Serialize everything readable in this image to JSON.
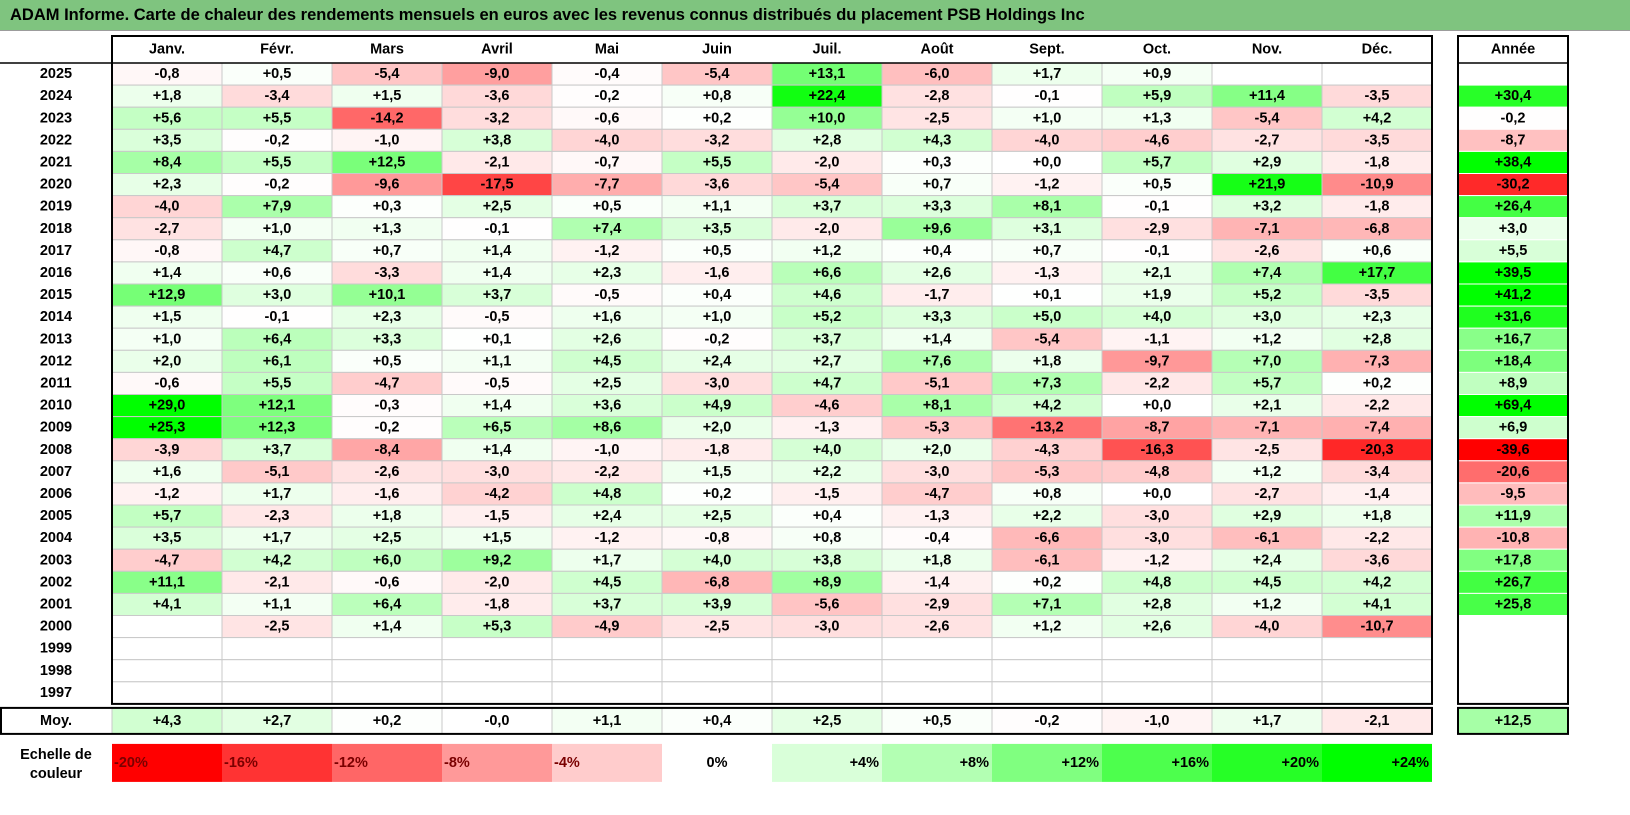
{
  "title": "ADAM Informe. Carte de chaleur des rendements mensuels en euros avec les revenus connus distribués du placement PSB Holdings Inc",
  "chart_data": {
    "type": "heatmap",
    "months": [
      "Janv.",
      "Févr.",
      "Mars",
      "Avril",
      "Mai",
      "Juin",
      "Juil.",
      "Août",
      "Sept.",
      "Oct.",
      "Nov.",
      "Déc."
    ],
    "annual_header": "Année",
    "average_label": "Moy.",
    "scale_label": [
      "Echelle de",
      "couleur"
    ],
    "rows": [
      {
        "year": "2025",
        "values": [
          -0.8,
          0.5,
          -5.4,
          -9.0,
          -0.4,
          -5.4,
          13.1,
          -6.0,
          1.7,
          0.9,
          null,
          null
        ],
        "annual": null
      },
      {
        "year": "2024",
        "values": [
          1.8,
          -3.4,
          1.5,
          -3.6,
          -0.2,
          0.8,
          22.4,
          -2.8,
          -0.1,
          5.9,
          11.4,
          -3.5
        ],
        "annual": 30.4
      },
      {
        "year": "2023",
        "values": [
          5.6,
          5.5,
          -14.2,
          -3.2,
          -0.6,
          0.2,
          10.0,
          -2.5,
          1.0,
          1.3,
          -5.4,
          4.2
        ],
        "annual": -0.2
      },
      {
        "year": "2022",
        "values": [
          3.5,
          -0.2,
          -1.0,
          3.8,
          -4.0,
          -3.2,
          2.8,
          4.3,
          -4.0,
          -4.6,
          -2.7,
          -3.5
        ],
        "annual": -8.7
      },
      {
        "year": "2021",
        "values": [
          8.4,
          5.5,
          12.5,
          -2.1,
          -0.7,
          5.5,
          -2.0,
          0.3,
          0.0,
          5.7,
          2.9,
          -1.8
        ],
        "annual": 38.4
      },
      {
        "year": "2020",
        "values": [
          2.3,
          -0.2,
          -9.6,
          -17.5,
          -7.7,
          -3.6,
          -5.4,
          0.7,
          -1.2,
          0.5,
          21.9,
          -10.9
        ],
        "annual": -30.2
      },
      {
        "year": "2019",
        "values": [
          -4.0,
          7.9,
          0.3,
          2.5,
          0.5,
          1.1,
          3.7,
          3.3,
          8.1,
          -0.1,
          3.2,
          -1.8
        ],
        "annual": 26.4
      },
      {
        "year": "2018",
        "values": [
          -2.7,
          1.0,
          1.3,
          -0.1,
          7.4,
          3.5,
          -2.0,
          9.6,
          3.1,
          -2.9,
          -7.1,
          -6.8
        ],
        "annual": 3.0
      },
      {
        "year": "2017",
        "values": [
          -0.8,
          4.7,
          0.7,
          1.4,
          -1.2,
          0.5,
          1.2,
          0.4,
          0.7,
          -0.1,
          -2.6,
          0.6
        ],
        "annual": 5.5
      },
      {
        "year": "2016",
        "values": [
          1.4,
          0.6,
          -3.3,
          1.4,
          2.3,
          -1.6,
          6.6,
          2.6,
          -1.3,
          2.1,
          7.4,
          17.7
        ],
        "annual": 39.5
      },
      {
        "year": "2015",
        "values": [
          12.9,
          3.0,
          10.1,
          3.7,
          -0.5,
          0.4,
          4.6,
          -1.7,
          0.1,
          1.9,
          5.2,
          -3.5
        ],
        "annual": 41.2
      },
      {
        "year": "2014",
        "values": [
          1.5,
          -0.1,
          2.3,
          -0.5,
          1.6,
          1.0,
          5.2,
          3.3,
          5.0,
          4.0,
          3.0,
          2.3
        ],
        "annual": 31.6
      },
      {
        "year": "2013",
        "values": [
          1.0,
          6.4,
          3.3,
          0.1,
          2.6,
          -0.2,
          3.7,
          1.4,
          -5.4,
          -1.1,
          1.2,
          2.8
        ],
        "annual": 16.7
      },
      {
        "year": "2012",
        "values": [
          2.0,
          6.1,
          0.5,
          1.1,
          4.5,
          2.4,
          2.7,
          7.6,
          1.8,
          -9.7,
          7.0,
          -7.3
        ],
        "annual": 18.4
      },
      {
        "year": "2011",
        "values": [
          -0.6,
          5.5,
          -4.7,
          -0.5,
          2.5,
          -3.0,
          4.7,
          -5.1,
          7.3,
          -2.2,
          5.7,
          0.2
        ],
        "annual": 8.9
      },
      {
        "year": "2010",
        "values": [
          29.0,
          12.1,
          -0.3,
          1.4,
          3.6,
          4.9,
          -4.6,
          8.1,
          4.2,
          0.0,
          2.1,
          -2.2
        ],
        "annual": 69.4
      },
      {
        "year": "2009",
        "values": [
          25.3,
          12.3,
          -0.2,
          6.5,
          8.6,
          2.0,
          -1.3,
          -5.3,
          -13.2,
          -8.7,
          -7.1,
          -7.4
        ],
        "annual": 6.9
      },
      {
        "year": "2008",
        "values": [
          -3.9,
          3.7,
          -8.4,
          1.4,
          -1.0,
          -1.8,
          4.0,
          2.0,
          -4.3,
          -16.3,
          -2.5,
          -20.3
        ],
        "annual": -39.6
      },
      {
        "year": "2007",
        "values": [
          1.6,
          -5.1,
          -2.6,
          -3.0,
          -2.2,
          1.5,
          2.2,
          -3.0,
          -5.3,
          -4.8,
          1.2,
          -3.4
        ],
        "annual": -20.6
      },
      {
        "year": "2006",
        "values": [
          -1.2,
          1.7,
          -1.6,
          -4.2,
          4.8,
          0.2,
          -1.5,
          -4.7,
          0.8,
          0.0,
          -2.7,
          -1.4
        ],
        "annual": -9.5
      },
      {
        "year": "2005",
        "values": [
          5.7,
          -2.3,
          1.8,
          -1.5,
          2.4,
          2.5,
          0.4,
          -1.3,
          2.2,
          -3.0,
          2.9,
          1.8
        ],
        "annual": 11.9
      },
      {
        "year": "2004",
        "values": [
          3.5,
          1.7,
          2.5,
          1.5,
          -1.2,
          -0.8,
          0.8,
          -0.4,
          -6.6,
          -3.0,
          -6.1,
          -2.2
        ],
        "annual": -10.8
      },
      {
        "year": "2003",
        "values": [
          -4.7,
          4.2,
          6.0,
          9.2,
          1.7,
          4.0,
          3.8,
          1.8,
          -6.1,
          -1.2,
          2.4,
          -3.6
        ],
        "annual": 17.8
      },
      {
        "year": "2002",
        "values": [
          11.1,
          -2.1,
          -0.6,
          -2.0,
          4.5,
          -6.8,
          8.9,
          -1.4,
          0.2,
          4.8,
          4.5,
          4.2
        ],
        "annual": 26.7
      },
      {
        "year": "2001",
        "values": [
          4.1,
          1.1,
          6.4,
          -1.8,
          3.7,
          3.9,
          -5.6,
          -2.9,
          7.1,
          2.8,
          1.2,
          4.1
        ],
        "annual": 25.8
      },
      {
        "year": "2000",
        "values": [
          null,
          -2.5,
          1.4,
          5.3,
          -4.9,
          -2.5,
          -3.0,
          -2.6,
          1.2,
          2.6,
          -4.0,
          -10.7
        ],
        "annual": null
      },
      {
        "year": "1999",
        "values": [
          null,
          null,
          null,
          null,
          null,
          null,
          null,
          null,
          null,
          null,
          null,
          null
        ],
        "annual": null
      },
      {
        "year": "1998",
        "values": [
          null,
          null,
          null,
          null,
          null,
          null,
          null,
          null,
          null,
          null,
          null,
          null
        ],
        "annual": null
      },
      {
        "year": "1997",
        "values": [
          null,
          null,
          null,
          null,
          null,
          null,
          null,
          null,
          null,
          null,
          null,
          null
        ],
        "annual": null
      }
    ],
    "averages": {
      "values": [
        4.3,
        2.7,
        0.2,
        -0.0,
        1.1,
        0.4,
        2.5,
        0.5,
        -0.2,
        -1.0,
        1.7,
        -2.1
      ],
      "annual": 12.5,
      "texts": [
        "+4,3",
        "+2,7",
        "+0,2",
        "-0,0",
        "+1,1",
        "+0,4",
        "+2,5",
        "+0,5",
        "-0,2",
        "-1,0",
        "+1,7",
        "-2,1"
      ],
      "annual_text": "+12,5"
    },
    "color_scale": {
      "labels": [
        "-20%",
        "-16%",
        "-12%",
        "-8%",
        "-4%",
        "0%",
        "+4%",
        "+8%",
        "+12%",
        "+16%",
        "+20%",
        "+24%"
      ],
      "colors": [
        "#ff0000",
        "#ff3333",
        "#ff6666",
        "#ff9999",
        "#ffcccc",
        "#ffffff",
        "#d9ffd9",
        "#b3ffb3",
        "#80ff80",
        "#4dff4d",
        "#26ff26",
        "#00ff00"
      ]
    }
  }
}
